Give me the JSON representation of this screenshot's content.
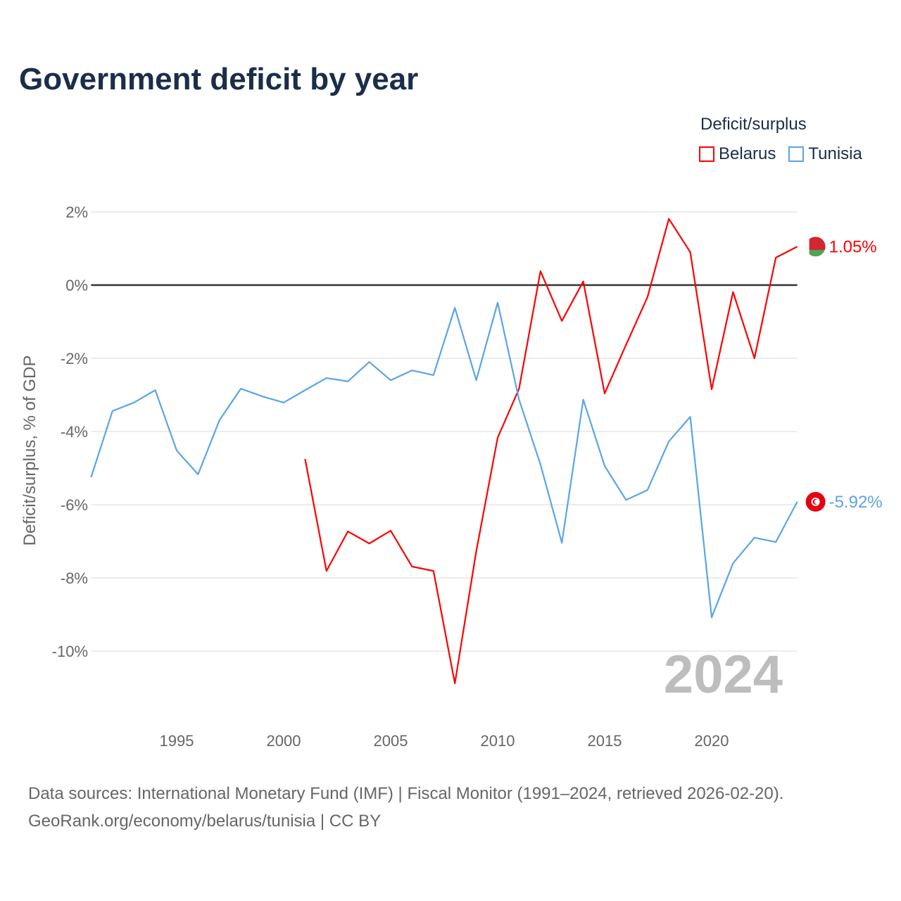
{
  "title": "Government deficit by year",
  "legend": {
    "title": "Deficit/surplus",
    "items": [
      {
        "name": "Belarus",
        "color": "#ff0000"
      },
      {
        "name": "Tunisia",
        "color": "#5aa5e8"
      }
    ]
  },
  "year_watermark": "2024",
  "source": {
    "line1": "Data sources: International Monetary Fund (IMF) | Fiscal Monitor (1991–2024, retrieved 2026-02-20).",
    "line2": "GeoRank.org/economy/belarus/tunisia | CC BY"
  },
  "chart_data": {
    "type": "line",
    "title": "Government deficit by year",
    "xlabel": "",
    "ylabel": "Deficit/surplus, % of GDP",
    "xlim": [
      1991,
      2024
    ],
    "ylim": [
      -11.5,
      2.5
    ],
    "xticks": [
      1995,
      2000,
      2005,
      2010,
      2015,
      2020
    ],
    "yticks": [
      2,
      0,
      -2,
      -4,
      -6,
      -8,
      -10
    ],
    "ytick_labels": [
      "2%",
      "0%",
      "-2%",
      "-4%",
      "-6%",
      "-8%",
      "-10%"
    ],
    "series": [
      {
        "name": "Belarus",
        "color": "#ff0000",
        "end_label": "1.05%",
        "x": [
          2001,
          2002,
          2003,
          2004,
          2005,
          2006,
          2007,
          2008,
          2009,
          2010,
          2011,
          2012,
          2013,
          2014,
          2015,
          2016,
          2017,
          2018,
          2019,
          2020,
          2021,
          2022,
          2023,
          2024
        ],
        "values": [
          -4.75,
          -7.81,
          -6.73,
          -7.06,
          -6.71,
          -7.69,
          -7.81,
          -10.88,
          -7.27,
          -4.17,
          -2.83,
          0.38,
          -0.98,
          0.1,
          -2.96,
          -1.63,
          -0.33,
          1.81,
          0.9,
          -2.85,
          -0.19,
          -2.0,
          0.75,
          1.05
        ]
      },
      {
        "name": "Tunisia",
        "color": "#5aa5e8",
        "end_label": "-5.92%",
        "x": [
          1991,
          1992,
          1993,
          1994,
          1995,
          1996,
          1997,
          1998,
          1999,
          2000,
          2001,
          2002,
          2003,
          2004,
          2005,
          2006,
          2007,
          2008,
          2009,
          2010,
          2011,
          2012,
          2013,
          2014,
          2015,
          2016,
          2017,
          2018,
          2019,
          2020,
          2021,
          2022,
          2023,
          2024
        ],
        "values": [
          -5.25,
          -3.44,
          -3.21,
          -2.87,
          -4.52,
          -5.17,
          -3.69,
          -2.83,
          -3.04,
          -3.21,
          -2.87,
          -2.54,
          -2.63,
          -2.1,
          -2.6,
          -2.33,
          -2.46,
          -0.62,
          -2.6,
          -0.48,
          -3.13,
          -4.9,
          -7.04,
          -3.13,
          -4.94,
          -5.87,
          -5.6,
          -4.27,
          -3.6,
          -9.08,
          -7.6,
          -6.9,
          -7.02,
          -5.92
        ]
      }
    ]
  }
}
